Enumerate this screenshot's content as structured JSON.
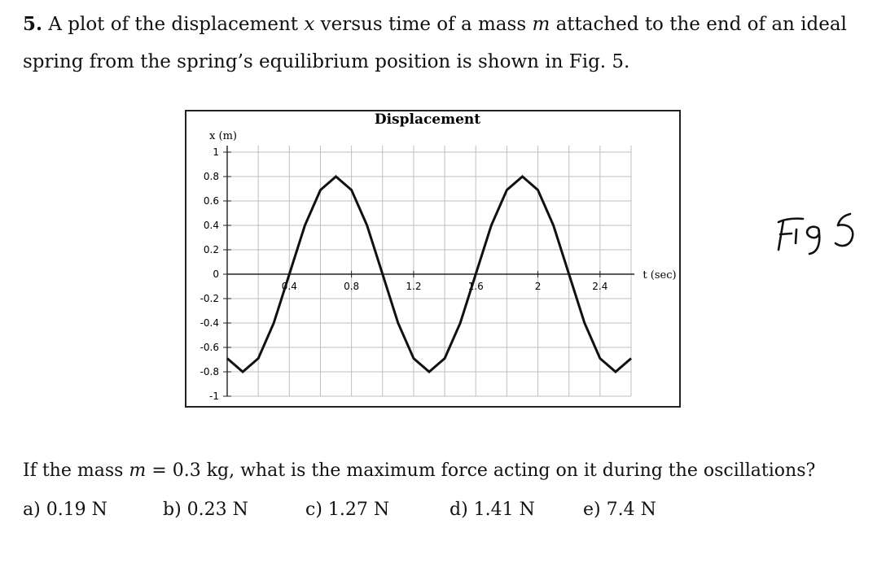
{
  "problem": {
    "number": "5.",
    "line1_a": "A plot of the displacement",
    "var_x": "x",
    "line1_b": "versus time of a mass",
    "var_m": "m",
    "line1_c": "attached to the end of an ideal",
    "line2": "spring from the spring’s equilibrium position is shown in Fig. 5."
  },
  "figure_note": "Fig 5",
  "question": {
    "part1": "If the mass",
    "var_m": "m",
    "part2": "= 0.3 kg, what is the maximum force acting on it during the oscillations?"
  },
  "choices": [
    {
      "label": "a) 0.19 N"
    },
    {
      "label": "b) 0.23 N"
    },
    {
      "label": "c) 1.27 N"
    },
    {
      "label": "d) 1.41 N"
    },
    {
      "label": "e) 7.4 N"
    }
  ],
  "chart_data": {
    "type": "line",
    "title": "Displacement",
    "xlabel": "t (sec)",
    "ylabel": "x (m)",
    "xlim": [
      0,
      2.6
    ],
    "ylim": [
      -1,
      1
    ],
    "x_ticks": [
      "0.4",
      "0.8",
      "1.2",
      "1.6",
      "2",
      "2.4"
    ],
    "x_tick_values": [
      0.4,
      0.8,
      1.2,
      1.6,
      2.0,
      2.4
    ],
    "y_ticks": [
      "1",
      "0.8",
      "0.6",
      "0.4",
      "0.2",
      "0",
      "-0.2",
      "-0.4",
      "-0.6",
      "-0.8",
      "-1"
    ],
    "y_tick_values": [
      1,
      0.8,
      0.6,
      0.4,
      0.2,
      0,
      -0.2,
      -0.4,
      -0.6,
      -0.8,
      -1
    ],
    "grid": true,
    "series": [
      {
        "amplitude": 0.8,
        "period": 1.2,
        "x": [
          0,
          0.1,
          0.2,
          0.3,
          0.4,
          0.5,
          0.6,
          0.7,
          0.8,
          0.9,
          1.0,
          1.1,
          1.2,
          1.3,
          1.4,
          1.5,
          1.6,
          1.7,
          1.8,
          1.9,
          2.0,
          2.1,
          2.2,
          2.3,
          2.4,
          2.5,
          2.6
        ],
        "y": [
          -0.69,
          -0.8,
          -0.69,
          -0.4,
          0.0,
          0.4,
          0.69,
          0.8,
          0.69,
          0.4,
          0.0,
          -0.4,
          -0.69,
          -0.8,
          -0.69,
          -0.4,
          0.0,
          0.4,
          0.69,
          0.8,
          0.69,
          0.4,
          0.0,
          -0.4,
          -0.69,
          -0.8,
          -0.69
        ]
      }
    ],
    "colors": {
      "curve": "#111111",
      "grid": "#bfbfbf",
      "frame": "#222222"
    }
  }
}
